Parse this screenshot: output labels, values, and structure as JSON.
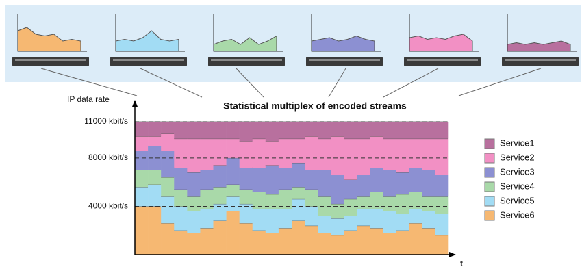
{
  "chart_data": {
    "type": "stacked-step-area",
    "title": "Statistical multiplex of encoded streams",
    "y_label": "IP data rate",
    "x_label": "t",
    "x": [
      0,
      1,
      2,
      3,
      4,
      5,
      6,
      7,
      8,
      9,
      10,
      11,
      12,
      13,
      14,
      15,
      16,
      17,
      18,
      19,
      20,
      21,
      22,
      23
    ],
    "xlim": [
      0,
      24
    ],
    "ylim": [
      0,
      11000
    ],
    "yticks": [
      {
        "value": 4000,
        "label": "4000 kbit/s"
      },
      {
        "value": 8000,
        "label": "8000 kbit/s"
      },
      {
        "value": 11000,
        "label": "11000 kbit/s"
      }
    ],
    "grid": true,
    "legend": "right",
    "series": [
      {
        "name": "Service1",
        "color": "#b8709e",
        "values": [
          1200,
          1200,
          1000,
          1400,
          1400,
          1400,
          1400,
          1400,
          1600,
          1400,
          1600,
          1400,
          1400,
          1200,
          1400,
          1200,
          1400,
          1400,
          1200,
          1400,
          1400,
          1400,
          1400,
          1400
        ]
      },
      {
        "name": "Service2",
        "color": "#f290c4",
        "values": [
          1200,
          800,
          1400,
          2400,
          2800,
          2600,
          2200,
          1600,
          2200,
          2400,
          2000,
          2400,
          2000,
          2800,
          2600,
          3200,
          3400,
          3000,
          2600,
          2600,
          2800,
          2400,
          2600,
          3000
        ]
      },
      {
        "name": "Service3",
        "color": "#8c90d2",
        "values": [
          1600,
          2000,
          2200,
          1800,
          2000,
          1600,
          1800,
          2200,
          1800,
          2000,
          2400,
          1800,
          2000,
          1600,
          2200,
          2400,
          1600,
          1800,
          2000,
          2200,
          1800,
          2000,
          2200,
          1800
        ]
      },
      {
        "name": "Service4",
        "color": "#a9d9a9",
        "values": [
          1400,
          1200,
          1600,
          1400,
          1200,
          1600,
          1400,
          1000,
          1200,
          1400,
          1200,
          1600,
          1000,
          1400,
          1600,
          1200,
          1400,
          1000,
          1400,
          1200,
          1600,
          1400,
          1200,
          1400
        ]
      },
      {
        "name": "Service5",
        "color": "#a2dcf4",
        "values": [
          1600,
          1800,
          2200,
          2000,
          1800,
          1600,
          1400,
          1200,
          1600,
          1800,
          2000,
          1600,
          1800,
          1600,
          1400,
          1400,
          1200,
          1400,
          1600,
          1800,
          1400,
          1200,
          1400,
          1800
        ]
      },
      {
        "name": "Service6",
        "color": "#f6b872",
        "values": [
          4000,
          4000,
          2600,
          2000,
          1800,
          2200,
          2800,
          3600,
          2600,
          2000,
          1800,
          2200,
          2800,
          2400,
          1800,
          1600,
          2000,
          2400,
          2200,
          1800,
          2000,
          2600,
          2200,
          1600
        ]
      }
    ]
  }
}
